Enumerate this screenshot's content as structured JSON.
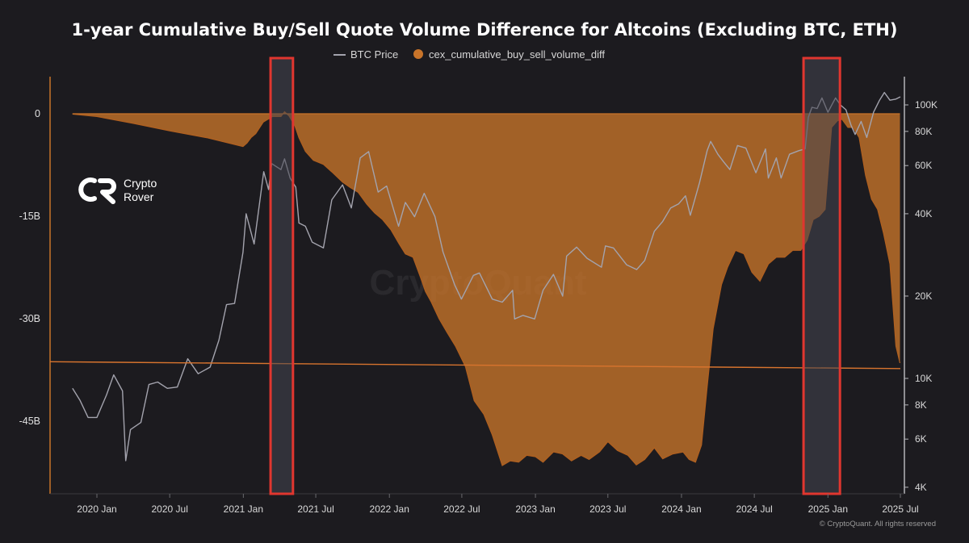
{
  "chart_data": {
    "type": "area",
    "title": "1-year Cumulative Buy/Sell Quote Volume Difference for Altcoins (Excluding BTC, ETH)",
    "legend_position": "top-center",
    "series": [
      {
        "name": "BTC Price",
        "kind": "line",
        "axis": "right",
        "color": "#a3a3ad",
        "x": [
          "2019-11-01",
          "2019-11-20",
          "2019-12-10",
          "2020-01-01",
          "2020-01-25",
          "2020-02-12",
          "2020-03-05",
          "2020-03-13",
          "2020-03-25",
          "2020-04-20",
          "2020-05-10",
          "2020-06-01",
          "2020-06-25",
          "2020-07-20",
          "2020-08-15",
          "2020-09-10",
          "2020-10-10",
          "2020-11-01",
          "2020-11-20",
          "2020-12-10",
          "2020-12-31",
          "2021-01-08",
          "2021-01-28",
          "2021-02-21",
          "2021-03-05",
          "2021-03-13",
          "2021-04-05",
          "2021-04-14",
          "2021-04-28",
          "2021-05-12",
          "2021-05-20",
          "2021-06-05",
          "2021-06-22",
          "2021-07-20",
          "2021-08-10",
          "2021-09-06",
          "2021-09-28",
          "2021-10-20",
          "2021-11-10",
          "2021-12-04",
          "2021-12-25",
          "2022-01-24",
          "2022-02-10",
          "2022-03-05",
          "2022-03-29",
          "2022-04-25",
          "2022-05-15",
          "2022-06-13",
          "2022-06-30",
          "2022-07-30",
          "2022-08-14",
          "2022-09-15",
          "2022-10-10",
          "2022-11-05",
          "2022-11-10",
          "2022-12-01",
          "2022-12-30",
          "2023-01-20",
          "2023-02-15",
          "2023-03-10",
          "2023-03-20",
          "2023-04-14",
          "2023-05-10",
          "2023-06-15",
          "2023-06-25",
          "2023-07-15",
          "2023-08-17",
          "2023-09-11",
          "2023-10-01",
          "2023-10-25",
          "2023-11-15",
          "2023-12-05",
          "2023-12-25",
          "2024-01-11",
          "2024-01-23",
          "2024-02-15",
          "2024-03-05",
          "2024-03-14",
          "2024-04-01",
          "2024-04-15",
          "2024-05-01",
          "2024-05-20",
          "2024-06-10",
          "2024-07-05",
          "2024-07-29",
          "2024-08-05",
          "2024-08-25",
          "2024-09-06",
          "2024-09-27",
          "2024-10-20",
          "2024-11-05",
          "2024-11-13",
          "2024-11-22",
          "2024-12-05",
          "2024-12-17",
          "2025-01-01",
          "2025-01-20",
          "2025-02-01",
          "2025-02-15",
          "2025-02-28",
          "2025-03-10",
          "2025-03-25",
          "2025-04-08",
          "2025-04-25",
          "2025-05-10",
          "2025-05-22",
          "2025-06-05",
          "2025-06-20",
          "2025-07-01"
        ],
        "values": [
          9200,
          8300,
          7200,
          7200,
          8700,
          10300,
          9000,
          5000,
          6500,
          6900,
          9500,
          9700,
          9200,
          9300,
          11800,
          10400,
          11000,
          13800,
          18600,
          18800,
          28900,
          40000,
          31000,
          57000,
          49000,
          61000,
          58000,
          63500,
          54000,
          50000,
          37000,
          36000,
          31500,
          30000,
          45000,
          51000,
          42000,
          64000,
          67500,
          48000,
          50500,
          36000,
          44000,
          39000,
          47500,
          39000,
          29000,
          22000,
          19500,
          23800,
          24300,
          19500,
          19000,
          21000,
          16500,
          17000,
          16500,
          21000,
          24000,
          20000,
          28000,
          30200,
          27500,
          25500,
          30500,
          30000,
          26000,
          25000,
          27000,
          34500,
          37500,
          42000,
          43500,
          46500,
          39500,
          52000,
          68000,
          73500,
          66000,
          62000,
          58000,
          71000,
          69500,
          56500,
          69000,
          54000,
          64000,
          54000,
          66000,
          68000,
          69000,
          90000,
          98000,
          97000,
          106000,
          94000,
          106000,
          100000,
          96000,
          84000,
          78000,
          87000,
          76000,
          94000,
          104000,
          111000,
          104000,
          105000,
          107000
        ]
      },
      {
        "name": "cex_cumulative_buy_sell_volume_diff",
        "kind": "area",
        "axis": "left",
        "unit": "B",
        "color": "#c8742a",
        "x": [
          "2019-11-01",
          "2020-01-01",
          "2020-04-01",
          "2020-07-01",
          "2020-10-01",
          "2020-12-31",
          "2021-01-10",
          "2021-01-20",
          "2021-02-01",
          "2021-02-20",
          "2021-03-15",
          "2021-04-05",
          "2021-04-14",
          "2021-04-25",
          "2021-05-10",
          "2021-05-20",
          "2021-06-05",
          "2021-06-25",
          "2021-07-20",
          "2021-08-10",
          "2021-09-06",
          "2021-09-25",
          "2021-10-15",
          "2021-11-05",
          "2021-11-25",
          "2021-12-15",
          "2022-01-05",
          "2022-01-25",
          "2022-02-10",
          "2022-03-01",
          "2022-03-20",
          "2022-04-01",
          "2022-04-15",
          "2022-05-05",
          "2022-05-25",
          "2022-06-15",
          "2022-07-10",
          "2022-08-01",
          "2022-08-25",
          "2022-09-15",
          "2022-10-10",
          "2022-10-30",
          "2022-11-20",
          "2022-12-10",
          "2023-01-01",
          "2023-01-20",
          "2023-02-15",
          "2023-03-10",
          "2023-04-01",
          "2023-04-25",
          "2023-05-15",
          "2023-06-10",
          "2023-07-01",
          "2023-07-25",
          "2023-08-20",
          "2023-09-10",
          "2023-10-01",
          "2023-10-25",
          "2023-11-15",
          "2023-12-10",
          "2024-01-05",
          "2024-01-20",
          "2024-02-05",
          "2024-02-20",
          "2024-03-05",
          "2024-03-20",
          "2024-04-10",
          "2024-04-25",
          "2024-05-15",
          "2024-06-05",
          "2024-06-25",
          "2024-07-15",
          "2024-08-05",
          "2024-08-25",
          "2024-09-15",
          "2024-10-05",
          "2024-10-25",
          "2024-11-10",
          "2024-11-25",
          "2024-12-10",
          "2024-12-25",
          "2025-01-10",
          "2025-01-25",
          "2025-02-05",
          "2025-02-20",
          "2025-03-05",
          "2025-03-20",
          "2025-04-05",
          "2025-04-20",
          "2025-05-05",
          "2025-05-20",
          "2025-06-05",
          "2025-06-20",
          "2025-06-30"
        ],
        "values": [
          -0.05,
          -0.4,
          -1.4,
          -2.5,
          -3.5,
          -4.8,
          -4.3,
          -3.5,
          -2.9,
          -1.2,
          -0.4,
          -0.4,
          0.3,
          -0.3,
          -1.8,
          -3.5,
          -5.5,
          -6.8,
          -7.4,
          -8.5,
          -10,
          -10.8,
          -11.5,
          -13.2,
          -14.5,
          -15.5,
          -17,
          -19,
          -20.5,
          -21,
          -24,
          -26,
          -27.5,
          -30,
          -32,
          -34,
          -37,
          -42,
          -44,
          -47,
          -51.5,
          -50.8,
          -51,
          -50,
          -50.2,
          -51,
          -49.5,
          -49.8,
          -50.8,
          -50,
          -50.6,
          -49.5,
          -48,
          -49.3,
          -50,
          -51.4,
          -50.6,
          -48.9,
          -50.5,
          -49.8,
          -49.5,
          -50.6,
          -51,
          -48.5,
          -40,
          -31.5,
          -25,
          -22.5,
          -20,
          -20.5,
          -23.2,
          -24.5,
          -22,
          -21,
          -21,
          -20,
          -20,
          -18.5,
          -15.5,
          -15,
          -14,
          -2,
          -1,
          -0.8,
          -2,
          -2,
          -3.5,
          -9,
          -12.5,
          -14,
          -17.5,
          -22,
          -34,
          -36.5
        ]
      }
    ],
    "y_left": {
      "ticks": [
        0,
        -15,
        -30,
        -45
      ],
      "labels": [
        "0",
        "-15B",
        "-30B",
        "-45B"
      ],
      "range": [
        1,
        -55
      ]
    },
    "y_right": {
      "scale": "log",
      "ticks": [
        100000,
        80000,
        60000,
        40000,
        20000,
        10000,
        8000,
        6000,
        4000
      ],
      "labels": [
        "100K",
        "80K",
        "60K",
        "40K",
        "20K",
        "10K",
        "8K",
        "6K",
        "4K"
      ],
      "range": [
        4000,
        130000
      ]
    },
    "x_axis": {
      "range": [
        "2019-10-01",
        "2025-07-15"
      ],
      "ticks": [
        "2020-01-01",
        "2020-07-01",
        "2021-01-01",
        "2021-07-01",
        "2022-01-01",
        "2022-07-01",
        "2023-01-01",
        "2023-07-01",
        "2024-01-01",
        "2024-07-01",
        "2025-01-01",
        "2025-07-01"
      ],
      "labels": [
        "2020 Jan",
        "2020 Jul",
        "2021 Jan",
        "2021 Jul",
        "2022 Jan",
        "2022 Jul",
        "2023 Jan",
        "2023 Jul",
        "2024 Jan",
        "2024 Jul",
        "2025 Jan",
        "2025 Jul"
      ]
    },
    "annotations": {
      "highlight_boxes": [
        {
          "x_start": "2021-03-10",
          "x_end": "2021-05-05",
          "color": "#e0362f"
        },
        {
          "x_start": "2024-11-01",
          "x_end": "2025-01-31",
          "color": "#e0362f"
        }
      ],
      "trend_line": {
        "color": "#d8742e",
        "from": [
          "2019-10-01",
          -36.3
        ],
        "to": [
          "2025-07-01",
          -37.3
        ]
      }
    },
    "watermark": "CryptoQuant",
    "logo": {
      "line1": "Crypto",
      "line2": "Rover"
    },
    "copyright": "© CryptoQuant. All rights reserved",
    "grid": false
  }
}
